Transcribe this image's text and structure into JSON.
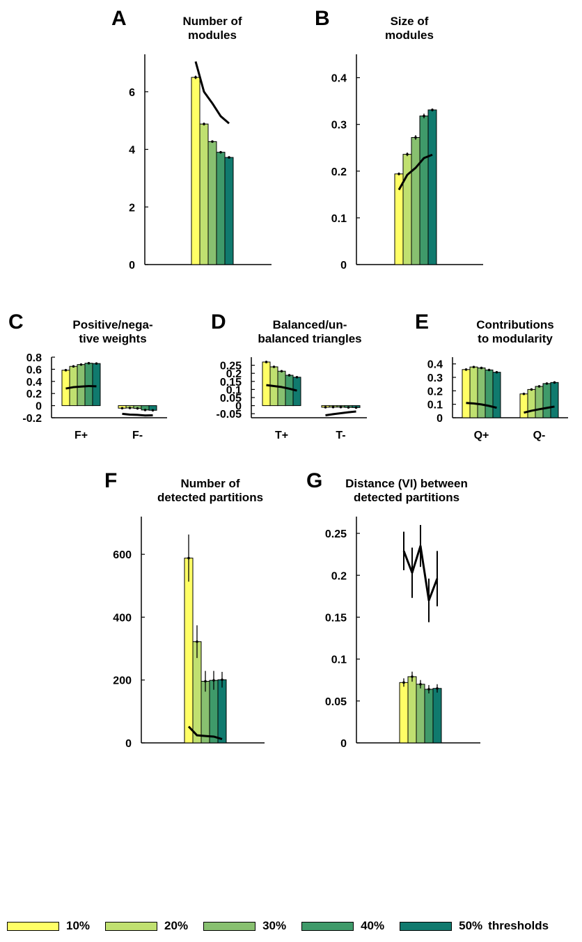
{
  "colors": [
    "#ffff66",
    "#c0e070",
    "#88c070",
    "#3f9a6a",
    "#107a6e"
  ],
  "legend": {
    "items": [
      "10%",
      "20%",
      "30%",
      "40%",
      "50%"
    ],
    "suffix": "thresholds"
  },
  "chart_data": [
    {
      "letter": "A",
      "title": [
        "Number of",
        "modules"
      ],
      "type": "bar",
      "ylim": [
        0,
        7.3
      ],
      "yticks": [
        0,
        2,
        4,
        6
      ],
      "yticklabels": [
        "0",
        "2",
        "4",
        "6"
      ],
      "groups": [
        {
          "label": "",
          "values": [
            6.5,
            4.88,
            4.27,
            3.9,
            3.72
          ],
          "errors": [
            0.06,
            0.05,
            0.04,
            0.04,
            0.04
          ],
          "line": [
            7.05,
            6.0,
            5.6,
            5.15,
            4.9
          ]
        }
      ]
    },
    {
      "letter": "B",
      "title": [
        "Size of",
        "modules"
      ],
      "type": "bar",
      "ylim": [
        0,
        0.45
      ],
      "yticks": [
        0,
        0.1,
        0.2,
        0.3,
        0.4
      ],
      "yticklabels": [
        "0",
        "0.1",
        "0.2",
        "0.3",
        "0.4"
      ],
      "groups": [
        {
          "label": "",
          "values": [
            0.194,
            0.236,
            0.272,
            0.318,
            0.331
          ],
          "errors": [
            0.003,
            0.004,
            0.005,
            0.005,
            0.003
          ],
          "line": [
            0.16,
            0.192,
            0.207,
            0.228,
            0.235
          ]
        }
      ]
    },
    {
      "letter": "C",
      "title": [
        "Positive/nega-",
        "tive weights"
      ],
      "type": "bar",
      "ylim": [
        -0.2,
        0.8
      ],
      "yticks": [
        -0.2,
        0,
        0.2,
        0.4,
        0.6,
        0.8
      ],
      "yticklabels": [
        "-0.2",
        "0",
        "0.2",
        "0.4",
        "0.6",
        "0.8"
      ],
      "groups": [
        {
          "label": "F+",
          "values": [
            0.585,
            0.648,
            0.678,
            0.7,
            0.695
          ],
          "errors": [
            0.006,
            0.006,
            0.006,
            0.006,
            0.006
          ],
          "line": [
            0.282,
            0.305,
            0.315,
            0.323,
            0.318
          ]
        },
        {
          "label": "F-",
          "values": [
            -0.042,
            -0.038,
            -0.045,
            -0.072,
            -0.077
          ],
          "errors": [
            0.004,
            0.004,
            0.004,
            0.004,
            0.004
          ],
          "line": [
            -0.135,
            -0.148,
            -0.153,
            -0.162,
            -0.16
          ]
        }
      ]
    },
    {
      "letter": "D",
      "title": [
        "Balanced/un-",
        "balanced triangles"
      ],
      "type": "bar",
      "ylim": [
        -0.075,
        0.3
      ],
      "yticks": [
        -0.05,
        0,
        0.05,
        0.1,
        0.15,
        0.2,
        0.25
      ],
      "yticklabels": [
        "-0.05",
        "0",
        "0.05",
        "0.1",
        "0.15",
        "0.2",
        "0.25"
      ],
      "groups": [
        {
          "label": "T+",
          "values": [
            0.27,
            0.24,
            0.213,
            0.188,
            0.176
          ],
          "errors": [
            0.005,
            0.004,
            0.003,
            0.003,
            0.003
          ],
          "line": [
            0.127,
            0.121,
            0.115,
            0.105,
            0.093
          ]
        },
        {
          "label": "T-",
          "values": [
            -0.01,
            -0.009,
            -0.009,
            -0.011,
            -0.012
          ],
          "errors": [
            0.002,
            0.002,
            0.002,
            0.002,
            0.002
          ],
          "line": [
            -0.06,
            -0.053,
            -0.047,
            -0.041,
            -0.036
          ]
        }
      ]
    },
    {
      "letter": "E",
      "title": [
        "Contributions",
        "to modularity"
      ],
      "type": "bar",
      "ylim": [
        0,
        0.45
      ],
      "yticks": [
        0,
        0.1,
        0.2,
        0.3,
        0.4
      ],
      "yticklabels": [
        "0",
        "0.1",
        "0.2",
        "0.3",
        "0.4"
      ],
      "groups": [
        {
          "label": "Q+",
          "values": [
            0.358,
            0.377,
            0.37,
            0.355,
            0.338
          ],
          "errors": [
            0.003,
            0.003,
            0.003,
            0.003,
            0.003
          ],
          "line": [
            0.11,
            0.106,
            0.099,
            0.088,
            0.074
          ]
        },
        {
          "label": "Q-",
          "values": [
            0.177,
            0.21,
            0.233,
            0.254,
            0.262
          ],
          "errors": [
            0.002,
            0.003,
            0.003,
            0.003,
            0.003
          ],
          "line": [
            0.038,
            0.052,
            0.063,
            0.073,
            0.083
          ]
        }
      ]
    },
    {
      "letter": "F",
      "title": [
        "Number of",
        "detected partitions"
      ],
      "type": "bar",
      "ylim": [
        0,
        720
      ],
      "yticks": [
        0,
        200,
        400,
        600
      ],
      "yticklabels": [
        "0",
        "200",
        "400",
        "600"
      ],
      "groups": [
        {
          "label": "",
          "values": [
            588,
            322,
            196,
            199,
            201
          ],
          "errors": [
            75,
            52,
            33,
            30,
            25
          ],
          "line": [
            52,
            24,
            22,
            20,
            12
          ]
        }
      ]
    },
    {
      "letter": "G",
      "title": [
        "Distance (VI) between",
        "detected partitions"
      ],
      "type": "bar",
      "ylim": [
        0,
        0.27
      ],
      "yticks": [
        0,
        0.05,
        0.1,
        0.15,
        0.2,
        0.25
      ],
      "yticklabels": [
        "0",
        "0.05",
        "0.1",
        "0.15",
        "0.2",
        "0.25"
      ],
      "groups": [
        {
          "label": "",
          "values": [
            0.072,
            0.079,
            0.07,
            0.064,
            0.065
          ],
          "errors": [
            0.005,
            0.006,
            0.005,
            0.005,
            0.005
          ],
          "line": [
            0.229,
            0.203,
            0.235,
            0.17,
            0.196
          ],
          "lineErrors": [
            0.023,
            0.03,
            0.025,
            0.026,
            0.033
          ]
        }
      ]
    }
  ]
}
